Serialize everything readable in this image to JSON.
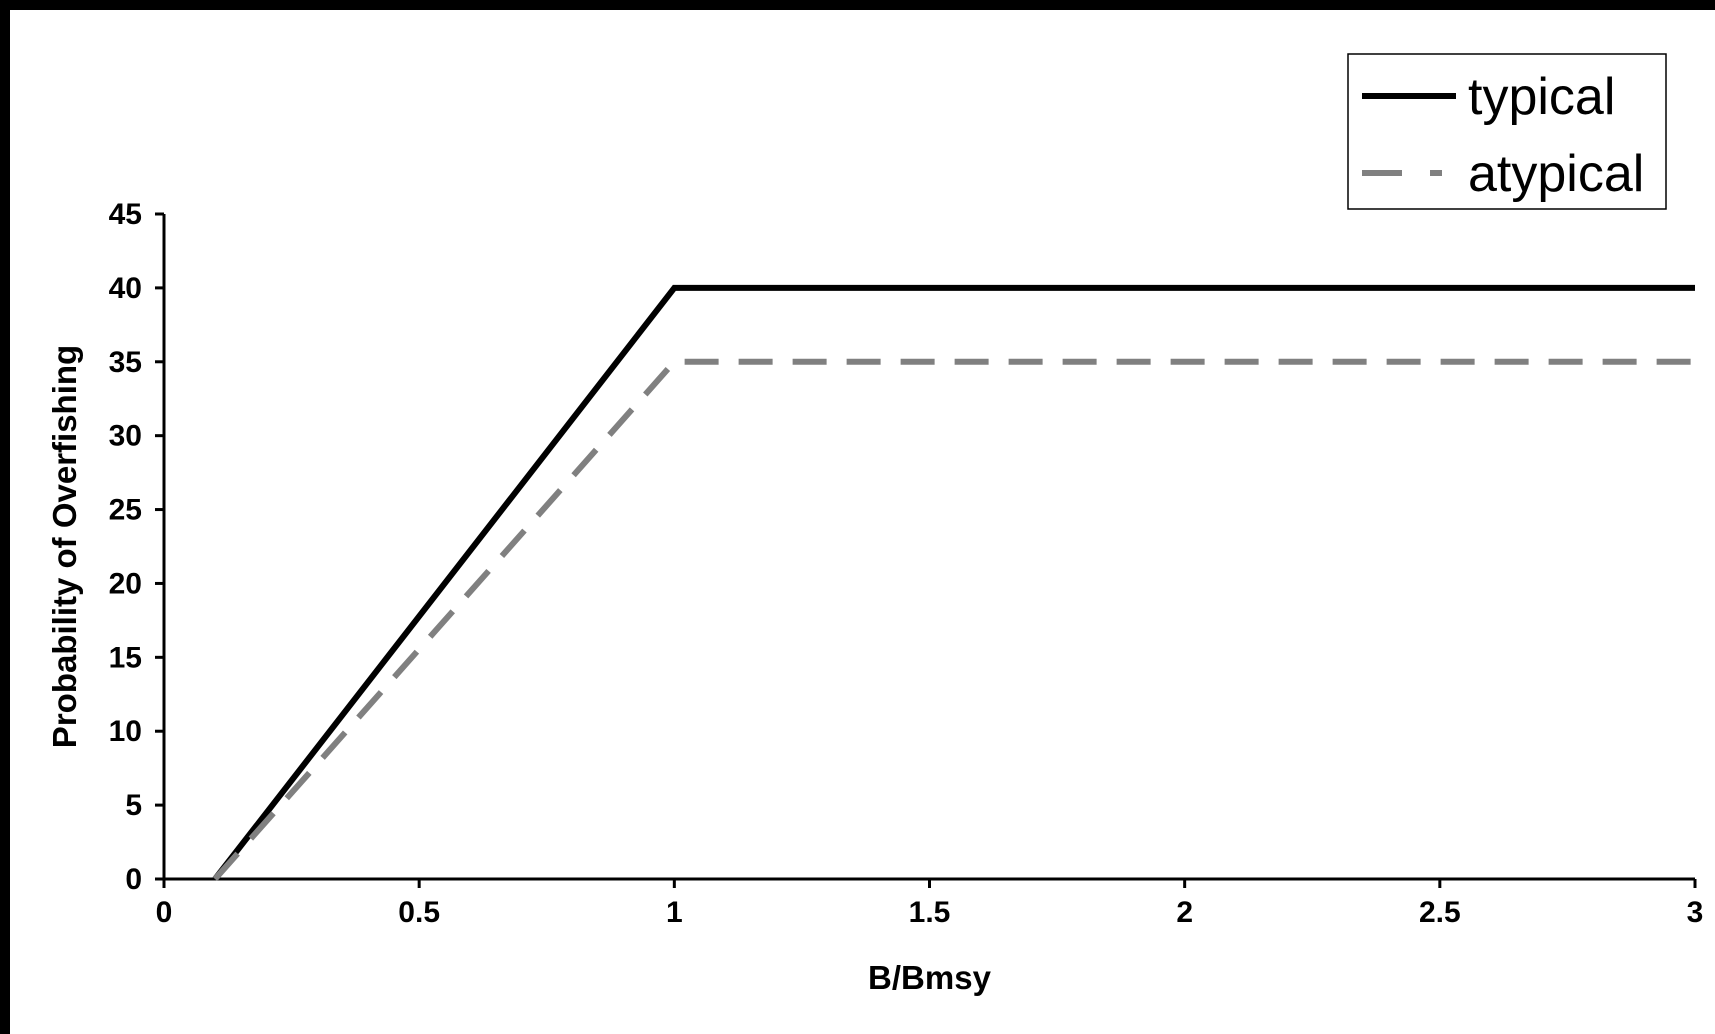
{
  "chart_data": {
    "type": "line",
    "title": "",
    "xlabel": "B/Bmsy",
    "ylabel": "Probability of Overfishing",
    "xlim": [
      0,
      3
    ],
    "ylim": [
      0,
      45
    ],
    "xticks": [
      0,
      0.5,
      1,
      1.5,
      2,
      2.5,
      3
    ],
    "xtick_labels": [
      "0",
      "0.5",
      "1",
      "1.5",
      "2",
      "2.5",
      "3"
    ],
    "yticks": [
      0,
      5,
      10,
      15,
      20,
      25,
      30,
      35,
      40,
      45
    ],
    "ytick_labels": [
      "0",
      "5",
      "10",
      "15",
      "20",
      "25",
      "30",
      "35",
      "40",
      "45"
    ],
    "grid": false,
    "legend_position": "top-right",
    "series": [
      {
        "name": "typical",
        "style": "solid",
        "color": "#000000",
        "x": [
          0.1,
          1,
          3
        ],
        "y": [
          0,
          40,
          40
        ]
      },
      {
        "name": "atypical",
        "style": "dashed",
        "color": "#808080",
        "x": [
          0.1,
          1,
          3
        ],
        "y": [
          0,
          35,
          35
        ]
      }
    ]
  }
}
